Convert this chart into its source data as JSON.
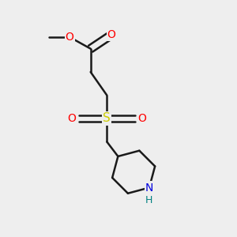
{
  "background_color": "#eeeeee",
  "bond_color": "#1a1a1a",
  "bond_width": 1.8,
  "fig_width": 3.0,
  "fig_height": 3.0,
  "dpi": 100,
  "colors": {
    "O": "#ff0000",
    "S": "#cccc00",
    "N": "#0000dd",
    "H": "#008080",
    "C": "#1a1a1a"
  }
}
